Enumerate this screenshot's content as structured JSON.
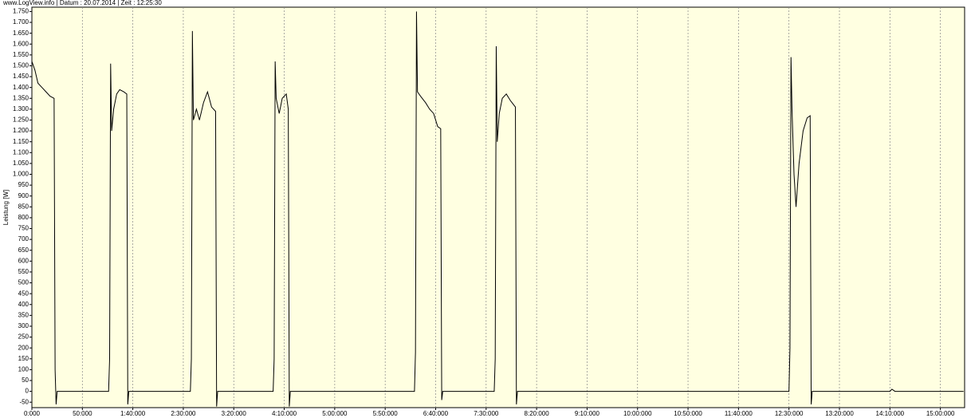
{
  "chart_data": {
    "type": "line",
    "header": "www.LogView.info  |  Datum : 20.07.2014  |  Zeit : 12:25:30",
    "ylabel": "Leistung [W]",
    "color": "#000000",
    "background": "#ffffe1",
    "xgrid": true,
    "xlim": [
      0,
      924
    ],
    "ylim": [
      -75,
      1770
    ],
    "xticks": [
      {
        "value": 0,
        "label": "0:000"
      },
      {
        "value": 50,
        "label": "50:000"
      },
      {
        "value": 100,
        "label": "1:40:000"
      },
      {
        "value": 150,
        "label": "2:30:000"
      },
      {
        "value": 200,
        "label": "3:20:000"
      },
      {
        "value": 250,
        "label": "4:10:000"
      },
      {
        "value": 300,
        "label": "5:00:000"
      },
      {
        "value": 350,
        "label": "5:50:000"
      },
      {
        "value": 400,
        "label": "6:40:000"
      },
      {
        "value": 450,
        "label": "7:30:000"
      },
      {
        "value": 500,
        "label": "8:20:000"
      },
      {
        "value": 550,
        "label": "9:10:000"
      },
      {
        "value": 600,
        "label": "10:00:000"
      },
      {
        "value": 650,
        "label": "10:50:000"
      },
      {
        "value": 700,
        "label": "11:40:000"
      },
      {
        "value": 750,
        "label": "12:30:000"
      },
      {
        "value": 800,
        "label": "13:20:000"
      },
      {
        "value": 850,
        "label": "14:10:000"
      },
      {
        "value": 900,
        "label": "15:00:000"
      }
    ],
    "yticks": [
      {
        "value": 1750,
        "label": "1.750"
      },
      {
        "value": 1700,
        "label": "1.700"
      },
      {
        "value": 1650,
        "label": "1.650"
      },
      {
        "value": 1600,
        "label": "1.600"
      },
      {
        "value": 1550,
        "label": "1.550"
      },
      {
        "value": 1500,
        "label": "1.500"
      },
      {
        "value": 1450,
        "label": "1.450"
      },
      {
        "value": 1400,
        "label": "1.400"
      },
      {
        "value": 1350,
        "label": "1.350"
      },
      {
        "value": 1300,
        "label": "1.300"
      },
      {
        "value": 1250,
        "label": "1.250"
      },
      {
        "value": 1200,
        "label": "1.200"
      },
      {
        "value": 1150,
        "label": "1.150"
      },
      {
        "value": 1100,
        "label": "1.100"
      },
      {
        "value": 1050,
        "label": "1.050"
      },
      {
        "value": 1000,
        "label": "1.000"
      },
      950,
      900,
      850,
      800,
      750,
      700,
      650,
      600,
      550,
      500,
      450,
      400,
      350,
      300,
      250,
      200,
      150,
      100,
      50,
      0,
      -50
    ],
    "x": [
      0,
      3,
      6,
      10,
      14,
      18,
      22,
      23,
      24,
      25,
      76,
      77,
      78,
      79,
      81,
      84,
      87,
      91,
      94,
      95,
      96,
      157,
      158,
      159,
      160,
      163,
      166,
      170,
      174,
      178,
      182,
      183,
      184,
      239,
      240,
      241,
      242,
      245,
      248,
      252,
      254,
      255,
      256,
      379,
      380,
      381,
      382,
      385,
      390,
      394,
      398,
      402,
      405,
      406,
      407,
      458,
      459,
      460,
      461,
      463,
      466,
      470,
      474,
      479,
      480,
      481,
      750,
      751,
      752,
      753,
      755,
      757,
      760,
      764,
      768,
      771,
      772,
      773,
      850,
      852,
      855,
      923
    ],
    "values": [
      1520,
      1480,
      1420,
      1400,
      1380,
      1360,
      1350,
      100,
      -60,
      0,
      0,
      150,
      1510,
      1200,
      1300,
      1370,
      1390,
      1380,
      1370,
      -60,
      0,
      0,
      150,
      1660,
      1250,
      1300,
      1250,
      1330,
      1380,
      1310,
      1290,
      -70,
      0,
      0,
      150,
      1520,
      1350,
      1280,
      1350,
      1370,
      1300,
      -70,
      0,
      0,
      180,
      1750,
      1380,
      1360,
      1330,
      1300,
      1280,
      1220,
      1210,
      -40,
      0,
      0,
      150,
      1590,
      1150,
      1280,
      1350,
      1370,
      1340,
      1310,
      -60,
      0,
      0,
      200,
      1540,
      1300,
      1000,
      850,
      1050,
      1200,
      1260,
      1270,
      -60,
      0,
      0,
      10,
      0,
      0
    ]
  }
}
